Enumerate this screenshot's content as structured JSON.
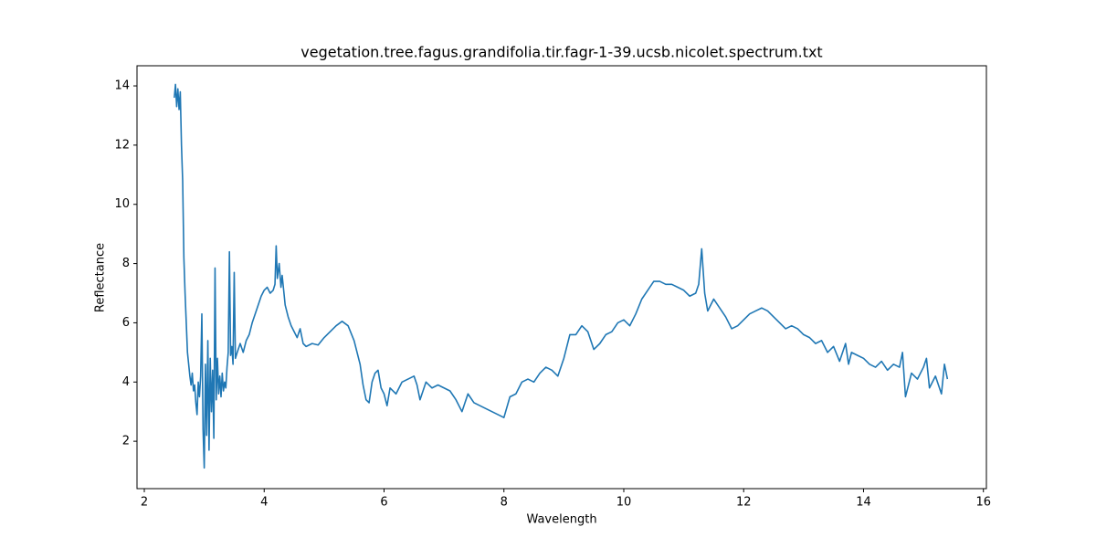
{
  "chart_data": {
    "type": "line",
    "title": "vegetation.tree.fagus.grandifolia.tir.fagr-1-39.ucsb.nicolet.spectrum.txt",
    "x_label": "Wavelength",
    "y_label": "Reflectance",
    "xlim": [
      1.878,
      16.05
    ],
    "ylim": [
      0.4,
      14.68
    ],
    "xticks": [
      2,
      4,
      6,
      8,
      10,
      12,
      14,
      16
    ],
    "yticks": [
      2,
      4,
      6,
      8,
      10,
      12,
      14
    ],
    "grid": false,
    "series": [
      {
        "color": "#1f77b4",
        "x": [
          2.5,
          2.52,
          2.54,
          2.56,
          2.58,
          2.6,
          2.62,
          2.64,
          2.66,
          2.68,
          2.7,
          2.72,
          2.74,
          2.76,
          2.78,
          2.8,
          2.82,
          2.84,
          2.86,
          2.88,
          2.9,
          2.92,
          2.94,
          2.96,
          2.98,
          3.0,
          3.02,
          3.04,
          3.06,
          3.08,
          3.1,
          3.12,
          3.14,
          3.16,
          3.18,
          3.2,
          3.22,
          3.24,
          3.26,
          3.28,
          3.3,
          3.32,
          3.34,
          3.36,
          3.38,
          3.4,
          3.42,
          3.44,
          3.46,
          3.48,
          3.5,
          3.52,
          3.55,
          3.6,
          3.65,
          3.7,
          3.75,
          3.8,
          3.85,
          3.9,
          3.95,
          4.0,
          4.05,
          4.1,
          4.15,
          4.18,
          4.2,
          4.22,
          4.25,
          4.28,
          4.3,
          4.35,
          4.4,
          4.45,
          4.5,
          4.55,
          4.6,
          4.65,
          4.7,
          4.8,
          4.9,
          5.0,
          5.1,
          5.2,
          5.3,
          5.4,
          5.5,
          5.6,
          5.65,
          5.7,
          5.75,
          5.8,
          5.85,
          5.9,
          5.95,
          6.0,
          6.05,
          6.1,
          6.2,
          6.3,
          6.4,
          6.5,
          6.55,
          6.6,
          6.7,
          6.8,
          6.9,
          7.0,
          7.1,
          7.2,
          7.3,
          7.4,
          7.5,
          7.6,
          7.7,
          7.8,
          7.9,
          8.0,
          8.1,
          8.2,
          8.3,
          8.4,
          8.5,
          8.6,
          8.7,
          8.8,
          8.9,
          9.0,
          9.1,
          9.2,
          9.3,
          9.4,
          9.5,
          9.6,
          9.7,
          9.8,
          9.9,
          10.0,
          10.1,
          10.2,
          10.3,
          10.4,
          10.5,
          10.6,
          10.7,
          10.8,
          10.9,
          11.0,
          11.1,
          11.2,
          11.25,
          11.3,
          11.35,
          11.4,
          11.5,
          11.6,
          11.7,
          11.8,
          11.9,
          12.0,
          12.1,
          12.2,
          12.3,
          12.4,
          12.5,
          12.6,
          12.7,
          12.8,
          12.9,
          13.0,
          13.1,
          13.2,
          13.3,
          13.4,
          13.5,
          13.6,
          13.7,
          13.75,
          13.8,
          13.9,
          14.0,
          14.1,
          14.2,
          14.3,
          14.4,
          14.5,
          14.6,
          14.65,
          14.7,
          14.8,
          14.9,
          15.0,
          15.05,
          15.1,
          15.2,
          15.3,
          15.35,
          15.4
        ],
        "values": [
          13.6,
          14.05,
          13.3,
          13.9,
          13.2,
          13.8,
          12.0,
          10.8,
          8.2,
          7.0,
          6.0,
          5.0,
          4.6,
          4.2,
          3.9,
          4.3,
          3.7,
          3.9,
          3.3,
          2.9,
          4.0,
          3.5,
          4.2,
          6.3,
          2.4,
          1.1,
          4.6,
          2.2,
          5.4,
          1.7,
          4.8,
          3.0,
          4.4,
          2.1,
          7.85,
          3.4,
          4.8,
          3.6,
          4.2,
          3.5,
          4.3,
          3.7,
          4.0,
          3.8,
          4.5,
          5.0,
          8.4,
          4.9,
          5.2,
          4.6,
          7.7,
          4.8,
          5.0,
          5.3,
          5.0,
          5.4,
          5.6,
          6.0,
          6.3,
          6.6,
          6.9,
          7.1,
          7.2,
          7.0,
          7.1,
          7.3,
          8.6,
          7.5,
          8.0,
          7.2,
          7.6,
          6.6,
          6.2,
          5.9,
          5.7,
          5.5,
          5.8,
          5.3,
          5.2,
          5.3,
          5.25,
          5.5,
          5.7,
          5.9,
          6.05,
          5.9,
          5.4,
          4.6,
          3.9,
          3.4,
          3.3,
          4.0,
          4.3,
          4.4,
          3.8,
          3.6,
          3.2,
          3.8,
          3.6,
          4.0,
          4.1,
          4.2,
          3.9,
          3.4,
          4.0,
          3.8,
          3.9,
          3.8,
          3.7,
          3.4,
          3.0,
          3.6,
          3.3,
          3.2,
          3.1,
          3.0,
          2.9,
          2.8,
          3.5,
          3.6,
          4.0,
          4.1,
          4.0,
          4.3,
          4.5,
          4.4,
          4.2,
          4.8,
          5.6,
          5.6,
          5.9,
          5.7,
          5.1,
          5.3,
          5.6,
          5.7,
          6.0,
          6.1,
          5.9,
          6.3,
          6.8,
          7.1,
          7.4,
          7.4,
          7.3,
          7.3,
          7.2,
          7.1,
          6.9,
          7.0,
          7.3,
          8.5,
          7.0,
          6.4,
          6.8,
          6.5,
          6.2,
          5.8,
          5.9,
          6.1,
          6.3,
          6.4,
          6.5,
          6.4,
          6.2,
          6.0,
          5.8,
          5.9,
          5.8,
          5.6,
          5.5,
          5.3,
          5.4,
          5.0,
          5.2,
          4.7,
          5.3,
          4.6,
          5.0,
          4.9,
          4.8,
          4.6,
          4.5,
          4.7,
          4.4,
          4.6,
          4.5,
          5.0,
          3.5,
          4.3,
          4.1,
          4.5,
          4.8,
          3.8,
          4.2,
          3.6,
          4.6,
          4.1
        ]
      }
    ]
  }
}
